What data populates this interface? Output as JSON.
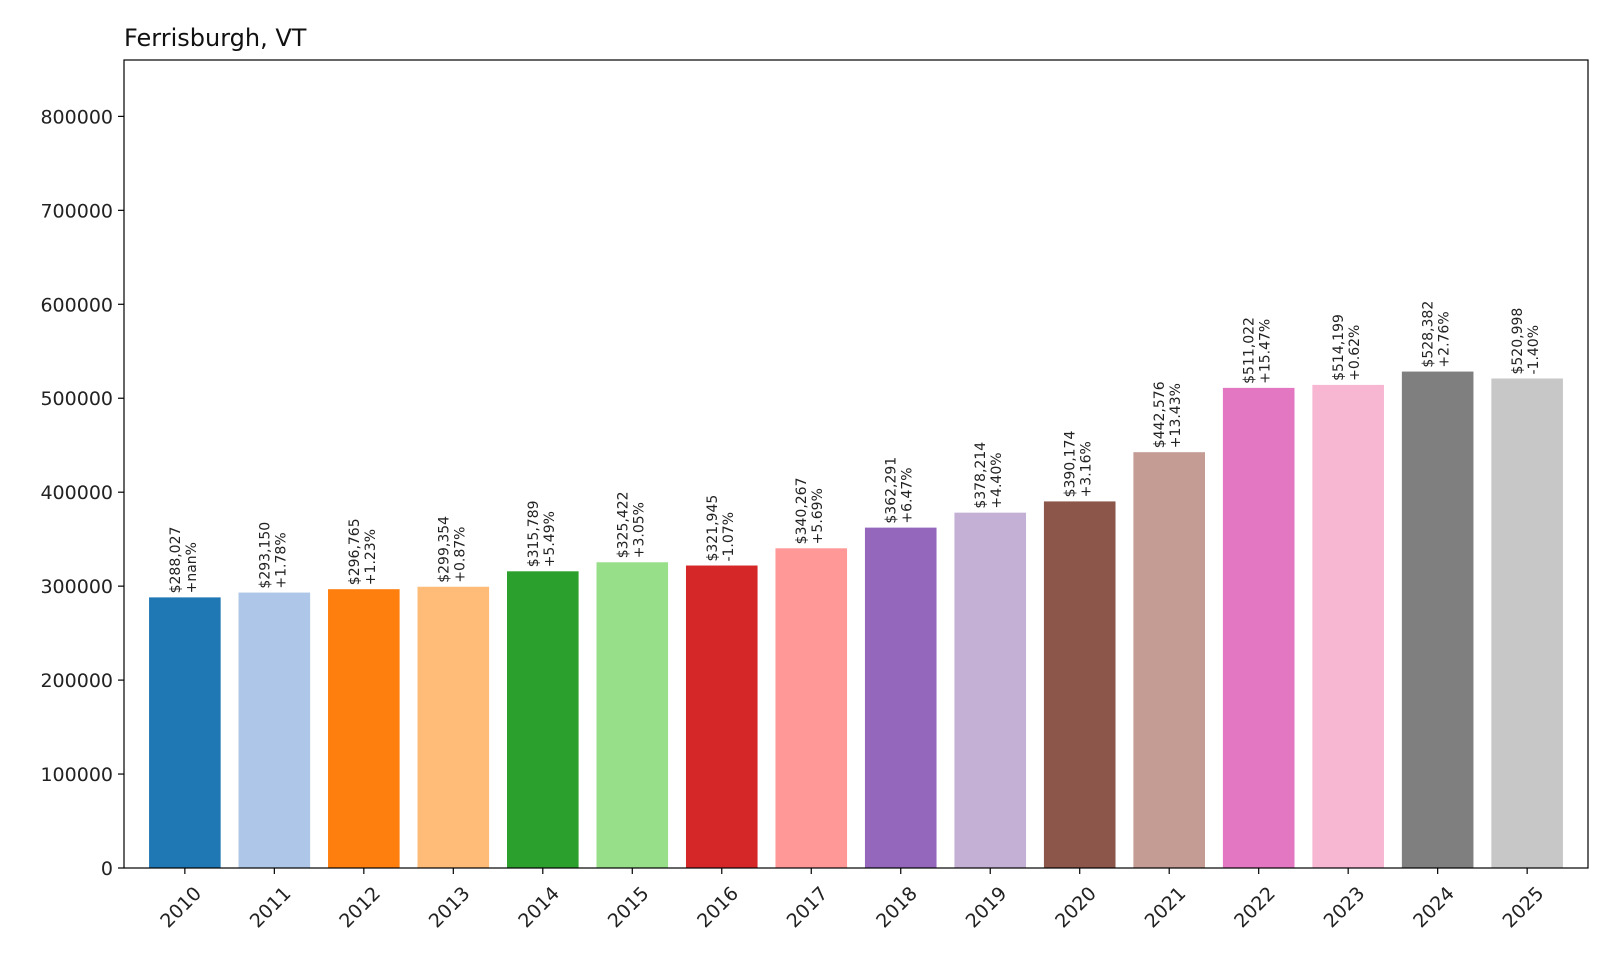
{
  "chart_data": {
    "type": "bar",
    "title": "Ferrisburgh, VT",
    "xlabel": "",
    "ylabel": "",
    "ylim": [
      0,
      860000
    ],
    "yticks": [
      0,
      100000,
      200000,
      300000,
      400000,
      500000,
      600000,
      700000,
      800000
    ],
    "ytick_labels": [
      "0",
      "100000",
      "200000",
      "300000",
      "400000",
      "500000",
      "600000",
      "700000",
      "800000"
    ],
    "grid": false,
    "categories": [
      "2010",
      "2011",
      "2012",
      "2013",
      "2014",
      "2015",
      "2016",
      "2017",
      "2018",
      "2019",
      "2020",
      "2021",
      "2022",
      "2023",
      "2024",
      "2025"
    ],
    "values": [
      288027,
      293150,
      296765,
      299354,
      315789,
      325422,
      321945,
      340267,
      362291,
      378214,
      390174,
      442576,
      511022,
      514199,
      528382,
      520998
    ],
    "value_labels": [
      "$288,027",
      "$293,150",
      "$296,765",
      "$299,354",
      "$315,789",
      "$325,422",
      "$321,945",
      "$340,267",
      "$362,291",
      "$378,214",
      "$390,174",
      "$442,576",
      "$511,022",
      "$514,199",
      "$528,382",
      "$520,998"
    ],
    "change_labels": [
      "+nan%",
      "+1.78%",
      "+1.23%",
      "+0.87%",
      "+5.49%",
      "+3.05%",
      "-1.07%",
      "+5.69%",
      "+6.47%",
      "+4.40%",
      "+3.16%",
      "+13.43%",
      "+15.47%",
      "+0.62%",
      "+2.76%",
      "-1.40%"
    ],
    "colors": [
      "#1f77b4",
      "#aec7e8",
      "#ff7f0e",
      "#ffbb78",
      "#2ca02c",
      "#98df8a",
      "#d62728",
      "#ff9896",
      "#9467bd",
      "#c5b0d5",
      "#8c564b",
      "#c49c94",
      "#e377c2",
      "#f7b6d2",
      "#7f7f7f",
      "#c7c7c7"
    ]
  }
}
